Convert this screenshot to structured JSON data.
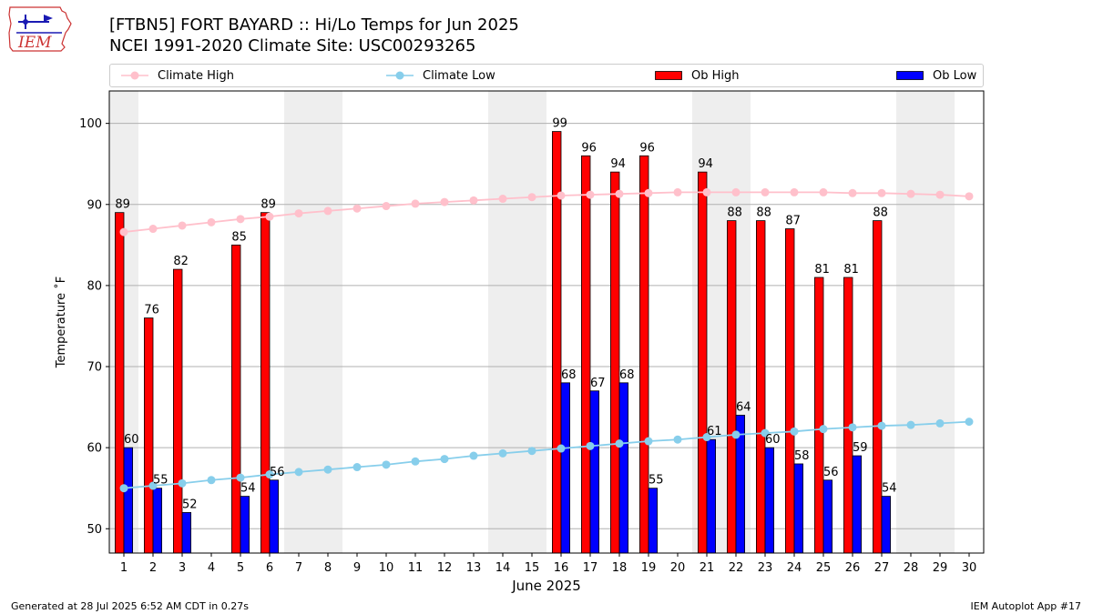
{
  "header": {
    "title_line1": "[FTBN5] FORT BAYARD :: Hi/Lo Temps for Jun 2025",
    "title_line2": "NCEI 1991-2020 Climate Site: USC00293265",
    "logo_text": "IEM"
  },
  "legend": {
    "climate_high": "Climate High",
    "climate_low": "Climate Low",
    "ob_high": "Ob High",
    "ob_low": "Ob Low"
  },
  "footer": {
    "generated": "Generated at 28 Jul 2025 6:52 AM CDT in 0.27s",
    "app": "IEM Autoplot App #17"
  },
  "colors": {
    "ob_high": "#ff0000",
    "ob_low": "#0000ff",
    "climate_high": "#ffc0cb",
    "climate_low": "#87ceeb",
    "weekend_shade": "#eeeeee",
    "grid": "#b0b0b0"
  },
  "chart_data": {
    "type": "bar",
    "xlabel": "June 2025",
    "ylabel": "Temperature ˚F",
    "ylim": [
      47,
      104
    ],
    "yticks": [
      50,
      60,
      70,
      80,
      90,
      100
    ],
    "grid": "horizontal",
    "legend_position": "top",
    "categories": [
      "1",
      "2",
      "3",
      "4",
      "5",
      "6",
      "7",
      "8",
      "9",
      "10",
      "11",
      "12",
      "13",
      "14",
      "15",
      "16",
      "17",
      "18",
      "19",
      "20",
      "21",
      "22",
      "23",
      "24",
      "25",
      "26",
      "27",
      "28",
      "29",
      "30"
    ],
    "shaded_days": [
      1,
      7,
      8,
      14,
      15,
      21,
      22,
      28,
      29
    ],
    "series": [
      {
        "name": "Ob High",
        "kind": "bar",
        "values": [
          89,
          76,
          82,
          null,
          85,
          89,
          null,
          null,
          null,
          null,
          null,
          null,
          null,
          null,
          null,
          99,
          96,
          94,
          96,
          null,
          94,
          88,
          88,
          87,
          81,
          81,
          88,
          null,
          null,
          null
        ]
      },
      {
        "name": "Ob Low",
        "kind": "bar",
        "values": [
          60,
          55,
          52,
          null,
          54,
          56,
          null,
          null,
          null,
          null,
          null,
          null,
          null,
          null,
          null,
          68,
          67,
          68,
          55,
          null,
          61,
          64,
          60,
          58,
          56,
          59,
          54,
          null,
          null,
          null
        ]
      },
      {
        "name": "Climate High",
        "kind": "line",
        "values": [
          86.6,
          87.0,
          87.4,
          87.8,
          88.2,
          88.5,
          88.9,
          89.2,
          89.5,
          89.8,
          90.1,
          90.3,
          90.5,
          90.7,
          90.9,
          91.1,
          91.2,
          91.3,
          91.4,
          91.5,
          91.5,
          91.5,
          91.5,
          91.5,
          91.5,
          91.4,
          91.4,
          91.3,
          91.2,
          91.0
        ]
      },
      {
        "name": "Climate Low",
        "kind": "line",
        "values": [
          55.0,
          55.3,
          55.6,
          56.0,
          56.3,
          56.7,
          57.0,
          57.3,
          57.6,
          57.9,
          58.3,
          58.6,
          59.0,
          59.3,
          59.6,
          59.9,
          60.2,
          60.5,
          60.8,
          61.0,
          61.3,
          61.6,
          61.8,
          62.0,
          62.3,
          62.5,
          62.7,
          62.8,
          63.0,
          63.2
        ]
      }
    ]
  }
}
